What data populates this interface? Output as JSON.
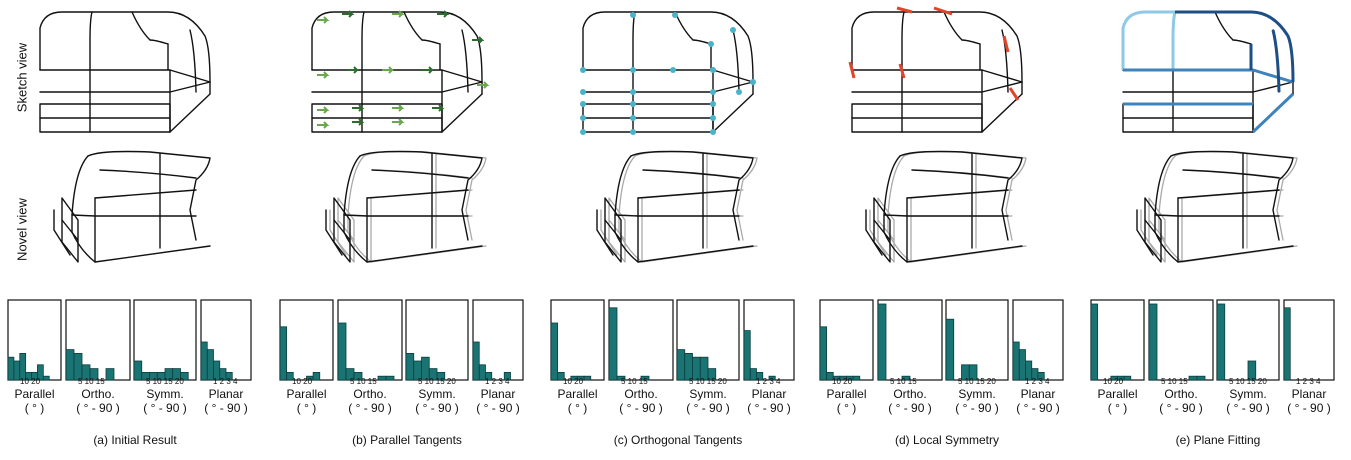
{
  "row_labels": {
    "sketch": "Sketch view",
    "novel": "Novel view"
  },
  "columns": [
    {
      "caption": "(a) Initial Result",
      "highlight": "none"
    },
    {
      "caption": "(b) Parallel Tangents",
      "highlight": "green-arrows"
    },
    {
      "caption": "(c) Orthogonal Tangents",
      "highlight": "cyan-dots"
    },
    {
      "caption": "(d) Local Symmetry",
      "highlight": "red-marks"
    },
    {
      "caption": "(e) Plane Fitting",
      "highlight": "blue-curves"
    }
  ],
  "histogram_labels": [
    {
      "name": "Parallel",
      "unit": "( ° )",
      "ticks": "10  20"
    },
    {
      "name": "Ortho.",
      "unit": "( ° - 90 )",
      "ticks": "5  10  15"
    },
    {
      "name": "Symm.",
      "unit": "( ° - 90 )",
      "ticks": "5  10 15 20"
    },
    {
      "name": "Planar",
      "unit": "( ° - 90 )",
      "ticks": "1  2  3  4"
    }
  ],
  "histograms": [
    [
      [
        6,
        5,
        7,
        2,
        2,
        4,
        1,
        0,
        0
      ],
      [
        8,
        7,
        4,
        3,
        0,
        3,
        0,
        0
      ],
      [
        5,
        2,
        2,
        2,
        3,
        3,
        2,
        0
      ],
      [
        10,
        8,
        5,
        3,
        2,
        0,
        0,
        0
      ]
    ],
    [
      [
        14,
        2,
        0,
        0,
        1,
        2,
        0,
        0
      ],
      [
        15,
        3,
        2,
        0,
        0,
        1,
        1,
        0
      ],
      [
        7,
        5,
        6,
        3,
        2,
        0,
        0,
        0
      ],
      [
        10,
        4,
        2,
        0,
        0,
        2,
        0,
        0
      ]
    ],
    [
      [
        15,
        2,
        0,
        1,
        1,
        1,
        0,
        0
      ],
      [
        19,
        1,
        0,
        0,
        1,
        0,
        0,
        0
      ],
      [
        8,
        7,
        6,
        6,
        3,
        0,
        0,
        0
      ],
      [
        13,
        3,
        2,
        0,
        1,
        0,
        0,
        0
      ]
    ],
    [
      [
        14,
        2,
        1,
        1,
        1,
        1,
        0,
        0
      ],
      [
        20,
        0,
        0,
        1,
        0,
        0,
        0,
        0
      ],
      [
        16,
        0,
        4,
        4,
        0,
        0,
        0,
        0
      ],
      [
        10,
        8,
        5,
        3,
        2,
        0,
        0,
        0
      ]
    ],
    [
      [
        20,
        0,
        0,
        1,
        1,
        1,
        0,
        0
      ],
      [
        20,
        0,
        0,
        0,
        0,
        1,
        1,
        0
      ],
      [
        20,
        0,
        0,
        0,
        5,
        0,
        0,
        0
      ],
      [
        19,
        0,
        0,
        0,
        0,
        0,
        0,
        0
      ]
    ]
  ],
  "colors": {
    "bar": "#1a7473",
    "green": "#6aa84f",
    "cyan": "#4bb3c9",
    "red": "#e0452b",
    "blue_light": "#8ec9e6",
    "blue_mid": "#3d83bd",
    "blue_dark": "#1d4f86"
  }
}
